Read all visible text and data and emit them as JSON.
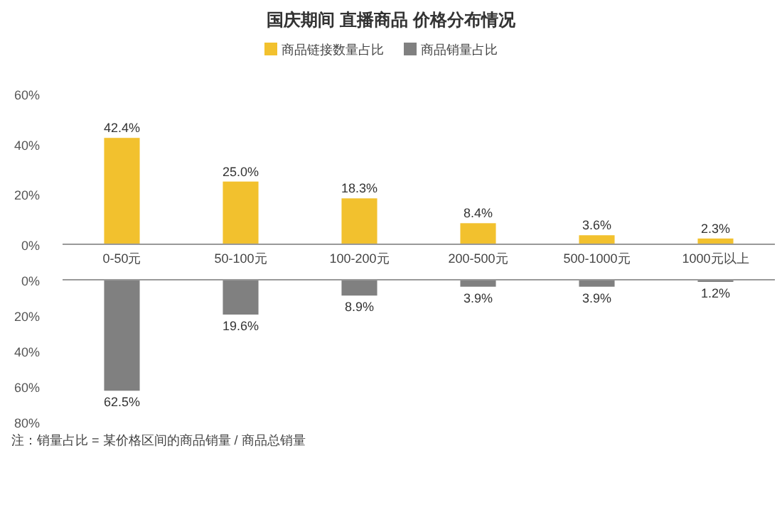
{
  "chart_data": [
    {
      "type": "bar",
      "title": "国庆期间 直播商品 价格分布情况",
      "categories": [
        "0-50元",
        "50-100元",
        "100-200元",
        "200-500元",
        "500-1000元",
        "1000元以上"
      ],
      "series": [
        {
          "name": "商品链接数量占比",
          "color": "#f2c12e",
          "values": [
            42.4,
            25.0,
            18.3,
            8.4,
            3.6,
            2.3
          ],
          "value_labels": [
            "42.4%",
            "25.0%",
            "18.3%",
            "8.4%",
            "3.6%",
            "2.3%"
          ]
        }
      ],
      "ylim": [
        0,
        60
      ],
      "yticks": [
        {
          "value": 0,
          "label": "0%"
        },
        {
          "value": 20,
          "label": "20%"
        },
        {
          "value": 40,
          "label": "40%"
        },
        {
          "value": 60,
          "label": "60%"
        }
      ],
      "legend": "top",
      "grid": false
    },
    {
      "type": "bar",
      "categories": [
        null,
        null,
        null,
        null,
        null,
        null
      ],
      "series": [
        {
          "name": "商品销量占比",
          "color": "#808080",
          "values": [
            62.5,
            19.6,
            8.9,
            3.9,
            3.9,
            1.2
          ],
          "value_labels": [
            "62.5%",
            "19.6%",
            "8.9%",
            "3.9%",
            "3.9%",
            "1.2%"
          ]
        }
      ],
      "ylim": [
        80,
        0
      ],
      "yticks": [
        {
          "value": 0,
          "label": "0%"
        },
        {
          "value": 20,
          "label": "20%"
        },
        {
          "value": 40,
          "label": "40%"
        },
        {
          "value": 60,
          "label": "60%"
        },
        {
          "value": 80,
          "label": "80%"
        }
      ],
      "tick_labels": "y",
      "legend": "top",
      "grid": false,
      "annotations": [
        "注：销量占比 = 某价格区间的商品销量 / 商品总销量"
      ]
    }
  ]
}
